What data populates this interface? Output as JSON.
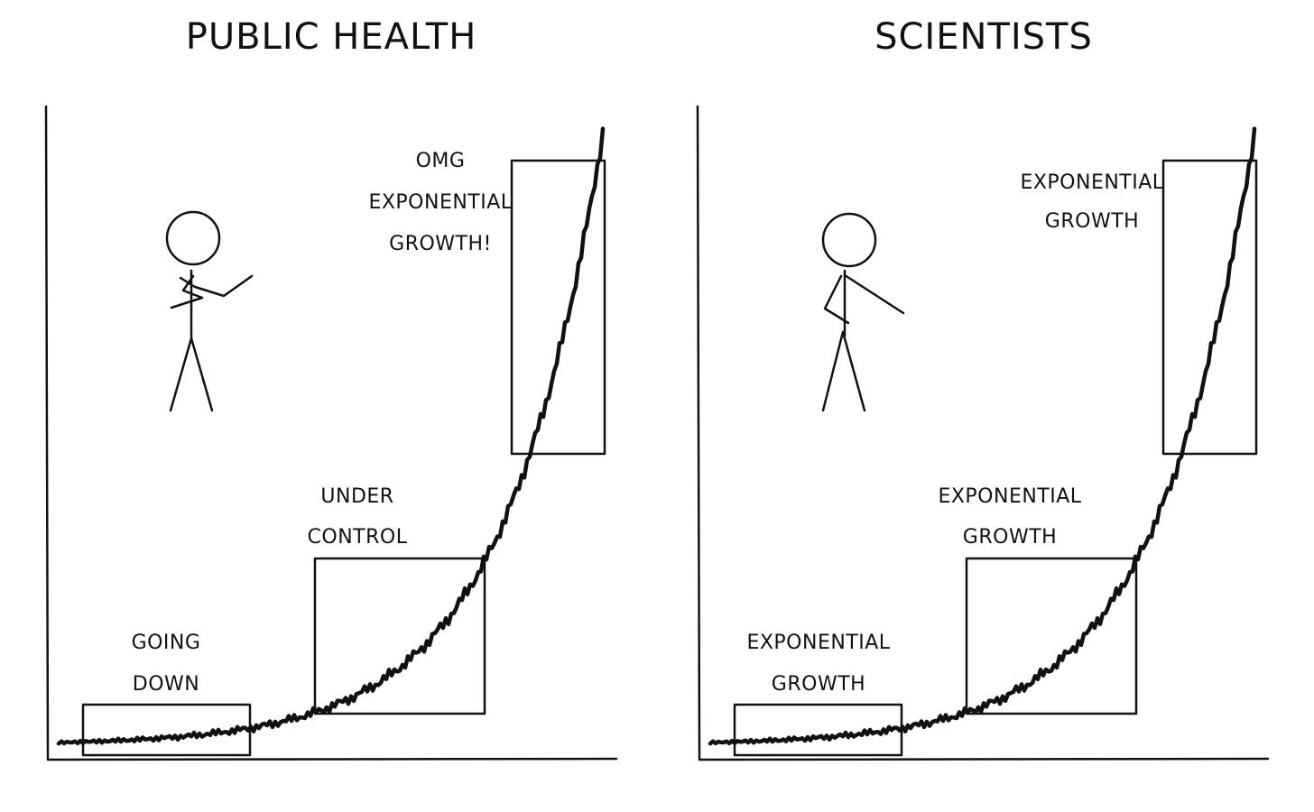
{
  "panels": [
    {
      "title": "PUBLIC HEALTH",
      "boxes": [
        {
          "lines": [
            "GOING",
            "DOWN"
          ]
        },
        {
          "lines": [
            "UNDER",
            "CONTROL"
          ]
        },
        {
          "lines": [
            "OMG",
            "EXPONENTIAL",
            "GROWTH!"
          ]
        }
      ]
    },
    {
      "title": "SCIENTISTS",
      "boxes": [
        {
          "lines": [
            "EXPONENTIAL",
            "GROWTH"
          ]
        },
        {
          "lines": [
            "EXPONENTIAL",
            "GROWTH"
          ]
        },
        {
          "lines": [
            "EXPONENTIAL",
            "GROWTH"
          ]
        }
      ]
    }
  ]
}
